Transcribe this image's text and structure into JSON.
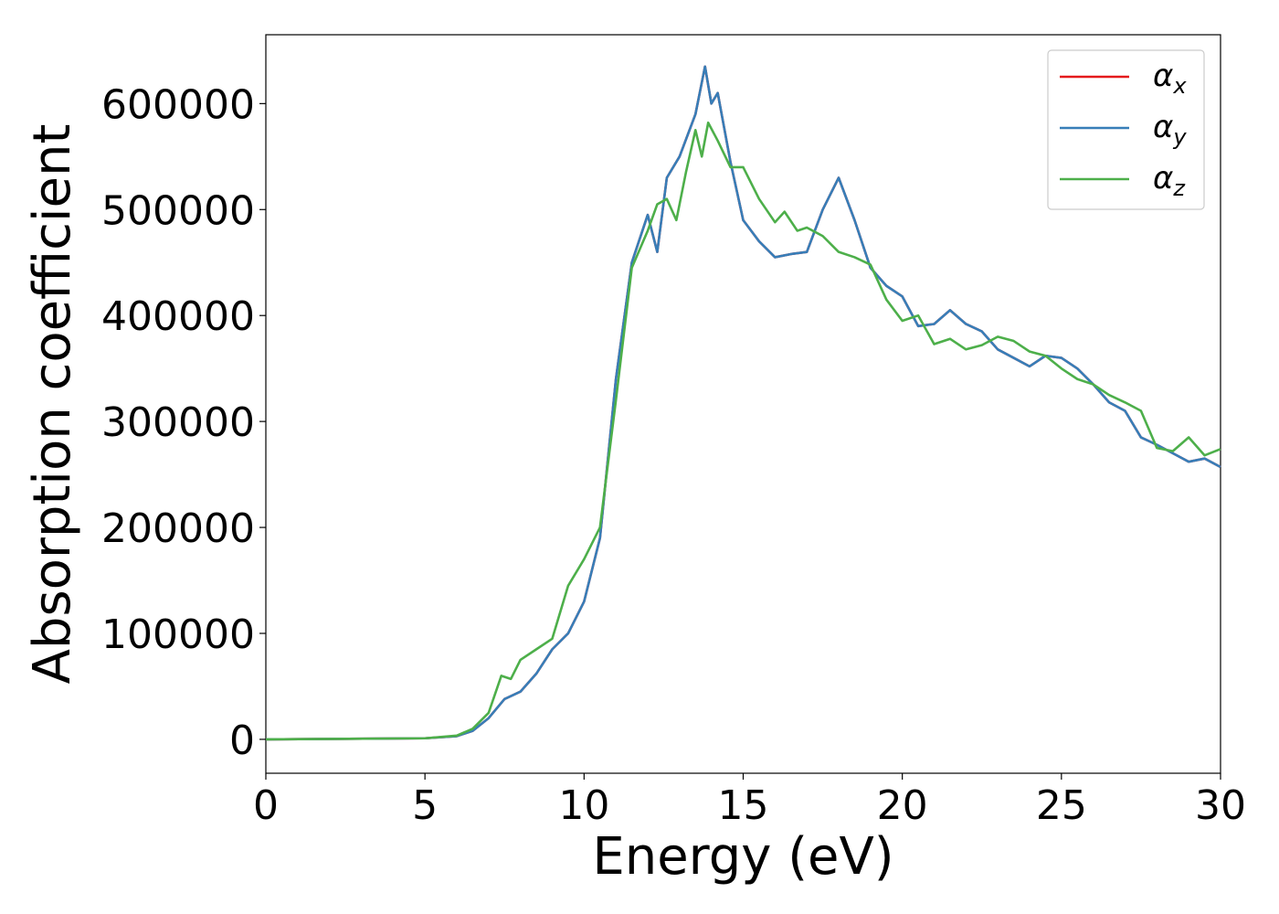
{
  "chart_data": {
    "type": "line",
    "xlabel": "Energy (eV)",
    "ylabel": "Absorption coefficient",
    "xlim": [
      0,
      30
    ],
    "ylim": [
      -32000,
      665000
    ],
    "x_ticks": [
      0,
      5,
      10,
      15,
      20,
      25,
      30
    ],
    "y_ticks": [
      0,
      100000,
      200000,
      300000,
      400000,
      500000,
      600000
    ],
    "grid": false,
    "legend_position": "top-right",
    "series": [
      {
        "name": "α",
        "subscript": "x",
        "color": "#e41a1c",
        "x": [
          0,
          5,
          6,
          6.5,
          7,
          7.5,
          8,
          8.5,
          9,
          9.5,
          10,
          10.5,
          11,
          11.5,
          12,
          12.3,
          12.6,
          13,
          13.5,
          13.8,
          14,
          14.2,
          14.6,
          15,
          15.5,
          16,
          16.5,
          17,
          17.5,
          18,
          18.5,
          19,
          19.5,
          20,
          20.5,
          21,
          21.5,
          22,
          22.5,
          23,
          23.5,
          24,
          24.5,
          25,
          25.5,
          26,
          26.5,
          27,
          27.5,
          28,
          28.5,
          29,
          29.5,
          30
        ],
        "y": [
          0,
          1000,
          3000,
          8000,
          20000,
          38000,
          45000,
          62000,
          85000,
          100000,
          130000,
          190000,
          340000,
          450000,
          495000,
          460000,
          530000,
          550000,
          590000,
          635000,
          600000,
          610000,
          545000,
          490000,
          470000,
          455000,
          458000,
          460000,
          500000,
          530000,
          490000,
          445000,
          428000,
          418000,
          390000,
          392000,
          405000,
          392000,
          385000,
          368000,
          360000,
          352000,
          362000,
          360000,
          350000,
          335000,
          318000,
          310000,
          285000,
          278000,
          270000,
          262000,
          265000,
          257000
        ]
      },
      {
        "name": "α",
        "subscript": "y",
        "color": "#377eb8",
        "x": [
          0,
          5,
          6,
          6.5,
          7,
          7.5,
          8,
          8.5,
          9,
          9.5,
          10,
          10.5,
          11,
          11.5,
          12,
          12.3,
          12.6,
          13,
          13.5,
          13.8,
          14,
          14.2,
          14.6,
          15,
          15.5,
          16,
          16.5,
          17,
          17.5,
          18,
          18.5,
          19,
          19.5,
          20,
          20.5,
          21,
          21.5,
          22,
          22.5,
          23,
          23.5,
          24,
          24.5,
          25,
          25.5,
          26,
          26.5,
          27,
          27.5,
          28,
          28.5,
          29,
          29.5,
          30
        ],
        "y": [
          0,
          1000,
          3000,
          8000,
          20000,
          38000,
          45000,
          62000,
          85000,
          100000,
          130000,
          190000,
          340000,
          450000,
          495000,
          460000,
          530000,
          550000,
          590000,
          635000,
          600000,
          610000,
          545000,
          490000,
          470000,
          455000,
          458000,
          460000,
          500000,
          530000,
          490000,
          445000,
          428000,
          418000,
          390000,
          392000,
          405000,
          392000,
          385000,
          368000,
          360000,
          352000,
          362000,
          360000,
          350000,
          335000,
          318000,
          310000,
          285000,
          278000,
          270000,
          262000,
          265000,
          257000
        ]
      },
      {
        "name": "α",
        "subscript": "z",
        "color": "#4daf4a",
        "x": [
          0,
          5,
          6,
          6.5,
          7,
          7.4,
          7.7,
          8,
          8.5,
          9,
          9.5,
          10,
          10.5,
          11,
          11.5,
          12,
          12.3,
          12.6,
          12.9,
          13.2,
          13.5,
          13.7,
          13.9,
          14.2,
          14.6,
          15,
          15.5,
          16,
          16.3,
          16.7,
          17,
          17.5,
          18,
          18.5,
          19,
          19.5,
          20,
          20.5,
          21,
          21.5,
          22,
          22.5,
          23,
          23.5,
          24,
          24.5,
          25,
          25.5,
          26,
          26.5,
          27,
          27.5,
          28,
          28.5,
          29,
          29.5,
          30
        ],
        "y": [
          0,
          1000,
          3500,
          10000,
          25000,
          60000,
          57000,
          75000,
          85000,
          95000,
          145000,
          170000,
          200000,
          320000,
          445000,
          480000,
          505000,
          510000,
          490000,
          535000,
          575000,
          550000,
          582000,
          565000,
          540000,
          540000,
          510000,
          488000,
          498000,
          480000,
          483000,
          475000,
          460000,
          455000,
          448000,
          415000,
          395000,
          400000,
          373000,
          378000,
          368000,
          372000,
          380000,
          376000,
          366000,
          362000,
          350000,
          340000,
          335000,
          325000,
          318000,
          310000,
          275000,
          272000,
          285000,
          268000,
          274000
        ]
      }
    ]
  }
}
